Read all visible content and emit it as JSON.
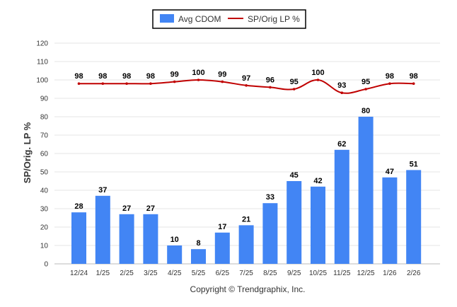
{
  "chart_data": {
    "type": "bar+line",
    "categories": [
      "12/24",
      "1/25",
      "2/25",
      "3/25",
      "4/25",
      "5/25",
      "6/25",
      "7/25",
      "8/25",
      "9/25",
      "10/25",
      "11/25",
      "12/25",
      "1/26",
      "2/26"
    ],
    "series": [
      {
        "name": "Avg CDOM",
        "type": "bar",
        "color": "#4285f4",
        "values": [
          28,
          37,
          27,
          27,
          10,
          8,
          17,
          21,
          33,
          45,
          42,
          62,
          80,
          47,
          51
        ]
      },
      {
        "name": "SP/Orig LP %",
        "type": "line",
        "color": "#c00000",
        "values": [
          98,
          98,
          98,
          98,
          99,
          100,
          99,
          97,
          96,
          95,
          100,
          93,
          95,
          98,
          98
        ]
      }
    ],
    "ylabel": "SP/Orig. LP %",
    "ylim": [
      0,
      120
    ],
    "yticks": [
      0,
      10,
      20,
      30,
      40,
      50,
      60,
      70,
      80,
      90,
      100,
      110,
      120
    ],
    "grid": true,
    "legend": "top-center"
  },
  "copyright": "Copyright © Trendgraphix, Inc."
}
